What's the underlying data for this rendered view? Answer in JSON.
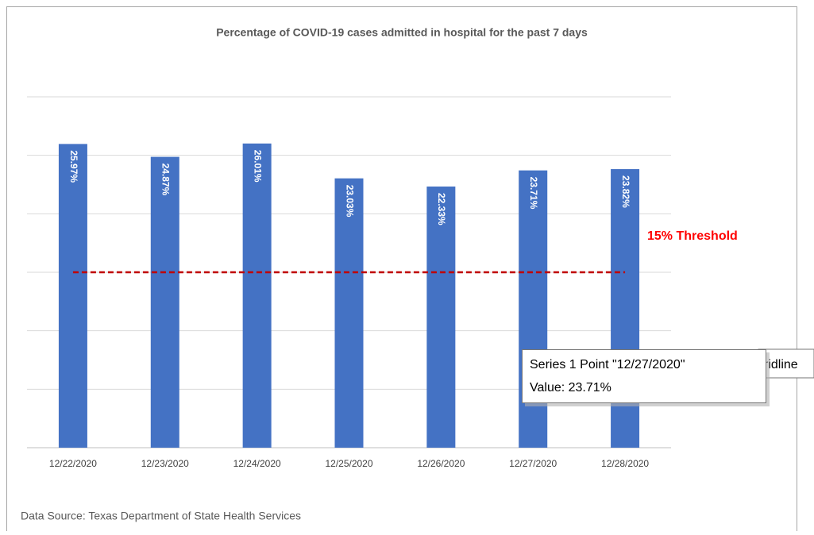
{
  "chart_data": {
    "type": "bar",
    "title": "Percentage of COVID-19 cases admitted in hospital for the past 7 days",
    "categories": [
      "12/22/2020",
      "12/23/2020",
      "12/24/2020",
      "12/25/2020",
      "12/26/2020",
      "12/27/2020",
      "12/28/2020"
    ],
    "values": [
      25.97,
      24.87,
      26.01,
      23.03,
      22.33,
      23.71,
      23.82
    ],
    "value_labels": [
      "25.97%",
      "24.87%",
      "26.01%",
      "23.03%",
      "22.33%",
      "23.71%",
      "23.82%"
    ],
    "color": "#4472c4",
    "ylim": [
      0,
      30
    ],
    "yticks": [
      0,
      5,
      10,
      15,
      20,
      25,
      30
    ],
    "grid": true,
    "threshold": {
      "value": 15,
      "label": "15% Threshold",
      "color": "#c00000"
    },
    "source": "Data Source: Texas Department of State Health Services",
    "tooltip": {
      "lines": [
        "Series 1 Point \"12/27/2020\"",
        "Value: 23.71%"
      ],
      "clipped": "ridline"
    }
  }
}
